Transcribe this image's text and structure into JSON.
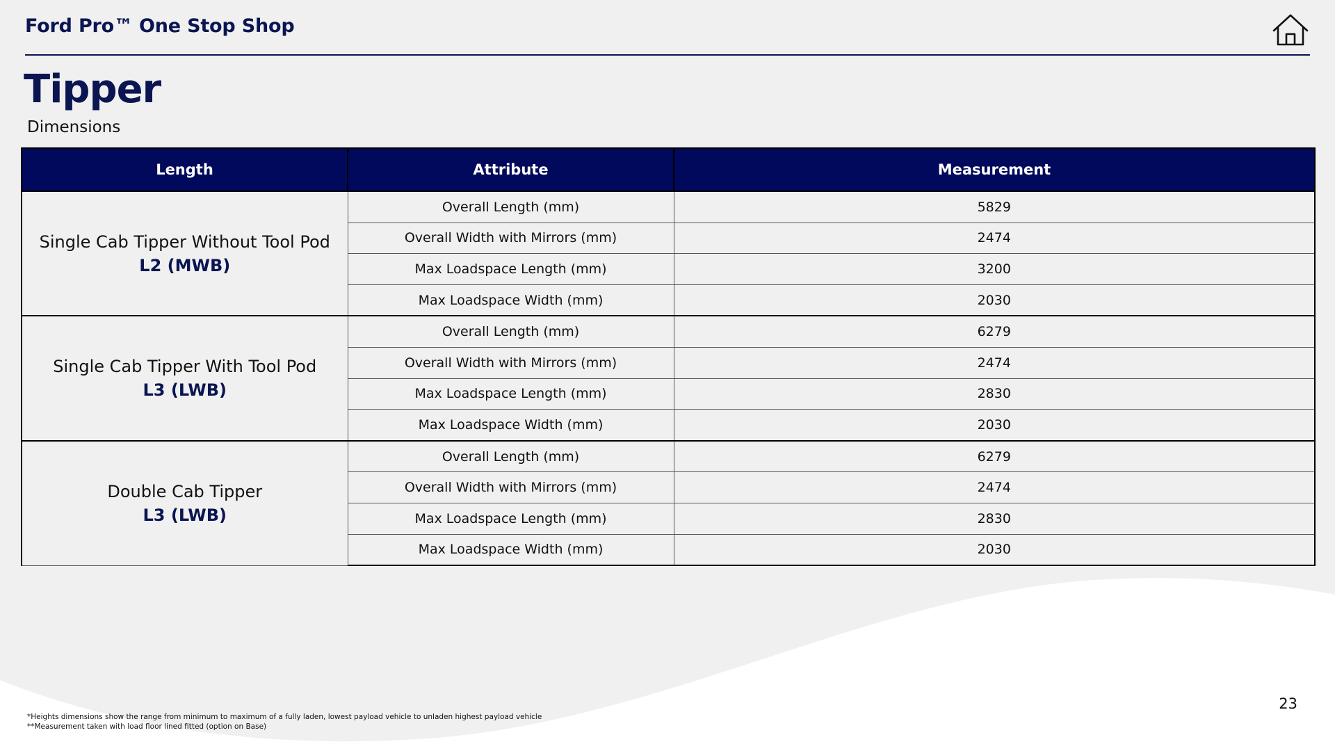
{
  "header": {
    "brand": "Ford Pro™ One Stop Shop",
    "home_icon": "home-icon"
  },
  "page": {
    "title": "Tipper",
    "subtitle": "Dimensions",
    "page_number": "23"
  },
  "table": {
    "headers": [
      "Length",
      "Attribute",
      "Measurement"
    ],
    "groups": [
      {
        "name": "Single Cab Tipper Without Tool Pod",
        "code": "L2 (MWB)",
        "rows": [
          {
            "attribute": "Overall Length (mm)",
            "measurement": "5829"
          },
          {
            "attribute": "Overall Width with Mirrors (mm)",
            "measurement": "2474"
          },
          {
            "attribute": "Max Loadspace Length (mm)",
            "measurement": "3200"
          },
          {
            "attribute": "Max Loadspace Width (mm)",
            "measurement": "2030"
          }
        ]
      },
      {
        "name": "Single Cab Tipper With Tool Pod",
        "code": "L3 (LWB)",
        "rows": [
          {
            "attribute": "Overall Length (mm)",
            "measurement": "6279"
          },
          {
            "attribute": "Overall Width with Mirrors (mm)",
            "measurement": "2474"
          },
          {
            "attribute": "Max Loadspace Length (mm)",
            "measurement": "2830"
          },
          {
            "attribute": "Max Loadspace Width (mm)",
            "measurement": "2030"
          }
        ]
      },
      {
        "name": "Double Cab Tipper",
        "code": "L3 (LWB)",
        "rows": [
          {
            "attribute": "Overall Length (mm)",
            "measurement": "6279"
          },
          {
            "attribute": "Overall Width with Mirrors (mm)",
            "measurement": "2474"
          },
          {
            "attribute": "Max Loadspace Length (mm)",
            "measurement": "2830"
          },
          {
            "attribute": "Max Loadspace Width (mm)",
            "measurement": "2030"
          }
        ]
      }
    ]
  },
  "footnotes": [
    "*Heights dimensions show the range from minimum to maximum of a fully laden, lowest payload vehicle to unladen highest payload vehicle",
    "**Measurement taken with load floor lined fitted (option on Base)"
  ],
  "colors": {
    "brand_navy": "#00095b",
    "background": "#f0f0f0",
    "wave": "#ffffff"
  }
}
